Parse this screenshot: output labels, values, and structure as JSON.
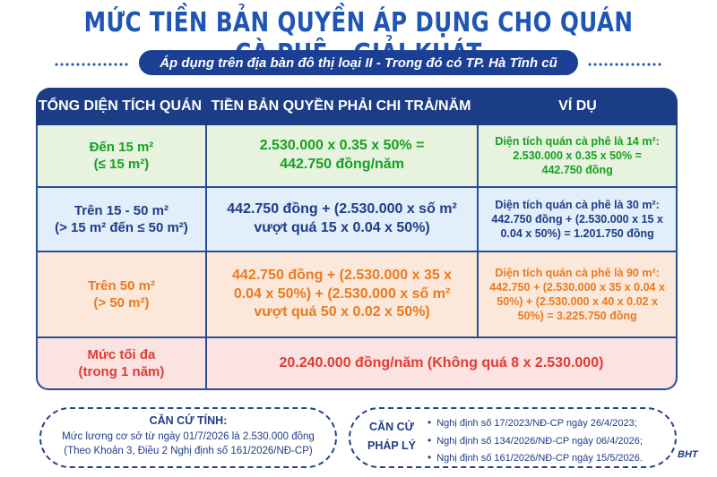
{
  "title": "MỨC TIỀN BẢN QUYỀN ÁP DỤNG CHO QUÁN CÀ PHÊ - GIẢI KHÁT",
  "subtitle": "Áp dụng trên địa bàn đô thị loại II - Trong đó có TP. Hà Tĩnh cũ",
  "table": {
    "headers": [
      "TỔNG DIỆN TÍCH QUÁN",
      "TIỀN BẢN QUYỀN PHẢI CHI TRẢ/NĂM",
      "VÍ DỤ"
    ],
    "rows": [
      {
        "area": [
          "Đến 15 m²",
          "(≤ 15 m²)"
        ],
        "fee": [
          "2.530.000 x 0.35 x 50% =",
          "442.750 đồng/năm"
        ],
        "example": [
          "Diện tích quán cà phê là 14 m²:",
          "2.530.000 x 0.35 x 50% =",
          "442.750 đồng"
        ]
      },
      {
        "area": [
          "Trên 15 - 50 m²",
          "(> 15 m² đến ≤ 50 m²)"
        ],
        "fee": [
          "442.750 đồng + (2.530.000 x số m²",
          "vượt quá 15 x 0.04 x 50%)"
        ],
        "example": [
          "Diện tích quán cà phê là 30 m²:",
          "442.750 đồng + (2.530.000 x 15 x",
          "0.04 x 50%) = 1.201.750 đồng"
        ]
      },
      {
        "area": [
          "Trên 50 m²",
          "(> 50 m²)"
        ],
        "fee": [
          "442.750 đồng + (2.530.000 x 35 x",
          "0.04 x 50%) + (2.530.000 x số m²",
          "vượt quá 50 x 0.02 x 50%)"
        ],
        "example": [
          "Diện tích quán cà phê là 90 m²:",
          "442.750 + (2.530.000 x 35 x 0.04 x",
          "50%) + (2.530.000 x 40 x 0.02 x",
          "50%) = 3.225.750 đồng"
        ]
      }
    ],
    "max": {
      "area": [
        "Mức tối đa",
        "(trong 1 năm)"
      ],
      "fee": "20.240.000 đồng/năm (Không quá 8 x 2.530.000)"
    }
  },
  "basis_left": {
    "heading": "CĂN CỨ TÍNH:",
    "line1": "Mức lương cơ sở từ ngày 01/7/2026 là 2.530.000 đồng",
    "line2": "(Theo Khoản 3, Điều 2 Nghị định số 161/2026/NĐ-CP)"
  },
  "basis_right": {
    "label1": "CĂN CỨ",
    "label2": "PHÁP LÝ",
    "items": [
      "Nghị định số 17/2023/NĐ-CP ngày 26/4/2023;",
      "Nghị định số 134/2026/NĐ-CP ngày 06/4/2026;",
      "Nghị định số 161/2026/NĐ-CP ngày 15/5/2026."
    ]
  },
  "watermark": "BHT",
  "colors": {
    "title": "#1f56b4",
    "header": "#1b3d86",
    "green": "#16a11f",
    "blue": "#1f3c88",
    "orange": "#ea7a1f",
    "red": "#e03c34"
  }
}
